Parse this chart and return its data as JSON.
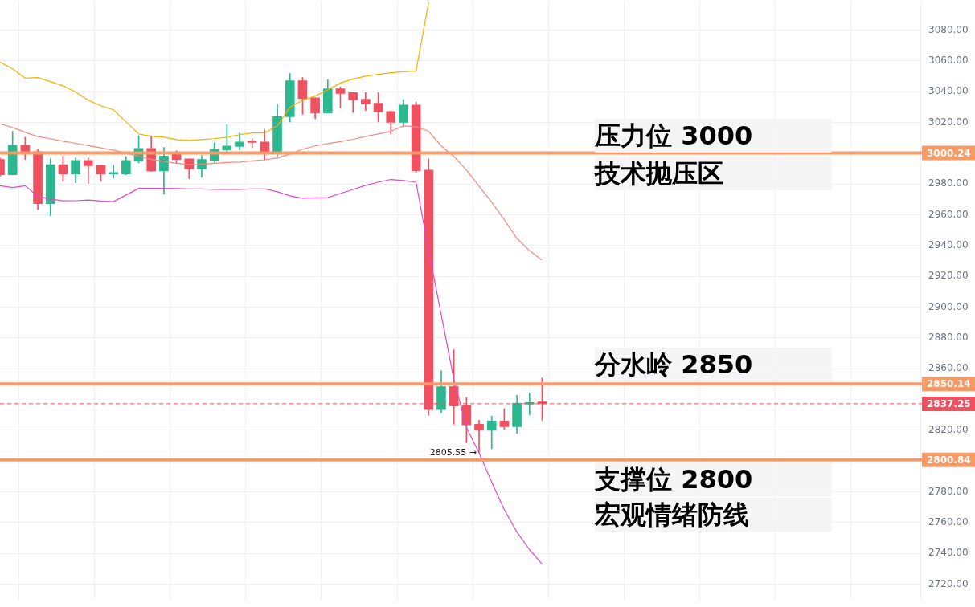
{
  "chart_data": {
    "type": "candlestick",
    "categories": [
      null,
      null,
      null,
      null,
      null,
      null,
      null,
      null,
      null,
      null,
      null,
      null,
      null,
      null,
      null,
      null,
      null,
      null,
      null,
      null,
      null,
      null,
      null,
      null,
      null,
      null,
      null,
      null,
      null,
      null,
      null,
      null,
      null,
      null,
      null,
      null,
      null,
      null,
      null,
      null,
      null,
      null,
      null,
      null,
      null,
      null,
      null,
      null,
      null,
      null,
      null,
      null,
      null,
      null,
      null,
      null,
      null,
      null,
      null,
      null,
      null,
      null,
      null,
      null,
      null,
      null,
      null,
      null,
      null,
      null,
      null,
      null,
      null,
      null
    ],
    "ohlc": [
      [
        2996,
        2997,
        2985,
        2986.1
      ],
      [
        2986.1,
        3014.3,
        2986,
        3005.3
      ],
      [
        3005.3,
        3010.5,
        2996,
        3000.7
      ],
      [
        3001.1,
        3002.7,
        2963.5,
        2967.3
      ],
      [
        2967.3,
        2996.4,
        2959.5,
        2992.6
      ],
      [
        2992.6,
        2998.1,
        2981.8,
        2986.6
      ],
      [
        2986.6,
        2997.1,
        2980.9,
        2995.4
      ],
      [
        2995.4,
        2997.1,
        2980.4,
        2991.9
      ],
      [
        2992.2,
        2992.2,
        2981.8,
        2986.6
      ],
      [
        2986.6,
        2992.2,
        2983.9,
        2987.5
      ],
      [
        2986.6,
        2997.8,
        2986.1,
        2995.4
      ],
      [
        2995,
        3011.4,
        2993.9,
        3003.2
      ],
      [
        3003.2,
        3011.4,
        2988.2,
        2988.6
      ],
      [
        2988.6,
        3003.9,
        2973.4,
        2998.3
      ],
      [
        2999.5,
        3001.6,
        2993.4,
        2996
      ],
      [
        2996.4,
        2996.4,
        2983.5,
        2989.8
      ],
      [
        2989.8,
        2998.6,
        2984.5,
        2996
      ],
      [
        2995.5,
        3006.9,
        2994.3,
        3002.7
      ],
      [
        3002.3,
        3018.7,
        3000.4,
        3004.8
      ],
      [
        3004.4,
        3013.1,
        3002.3,
        3007.4
      ],
      [
        3007.9,
        3009.5,
        3003.7,
        3007
      ],
      [
        3007.4,
        3015.2,
        2996,
        3000.7
      ],
      [
        3000.7,
        3031.8,
        2997.8,
        3023.9
      ],
      [
        3023.7,
        3051.8,
        3020.4,
        3047.1
      ],
      [
        3047.1,
        3049.2,
        3025.3,
        3035.6
      ],
      [
        3036.1,
        3036.1,
        3022.5,
        3026.3
      ],
      [
        3026.3,
        3047.8,
        3026.3,
        3041.9
      ],
      [
        3041.9,
        3043.1,
        3029.5,
        3038.9
      ],
      [
        3039.4,
        3039.4,
        3026.5,
        3034.7
      ],
      [
        3035.1,
        3039.4,
        3027.7,
        3032.1
      ],
      [
        3032.5,
        3039.4,
        3020.4,
        3026.9
      ],
      [
        3027.2,
        3027.2,
        3012.4,
        3020.1
      ],
      [
        3020.1,
        3034.9,
        3017.3,
        3031.4
      ],
      [
        3031.4,
        3033.3,
        2987.7,
        2988.7
      ],
      [
        2989.1,
        2996.4,
        2829.7,
        2833.5
      ],
      [
        2833.5,
        2858.8,
        2831.4,
        2848.4
      ],
      [
        2848.4,
        2872.4,
        2824,
        2835.8
      ],
      [
        2836.4,
        2841.4,
        2811.9,
        2823.6
      ],
      [
        2824,
        2826.6,
        2805.55,
        2820
      ],
      [
        2820,
        2829.2,
        2808,
        2826.1
      ],
      [
        2826.1,
        2834.1,
        2820.7,
        2822.4
      ],
      [
        2822.4,
        2842.8,
        2818.1,
        2837.6
      ],
      [
        2837,
        2844,
        2830.1,
        2838.1
      ],
      [
        2838.5,
        2854.1,
        2826.6,
        2837.25
      ],
      null,
      null,
      null,
      null,
      null,
      null,
      null,
      null,
      null,
      null,
      null,
      null,
      null,
      null,
      null,
      null,
      null,
      null,
      null,
      null,
      null,
      null,
      null,
      null,
      null,
      null,
      null,
      null,
      null,
      null
    ],
    "colors": [
      "#ef5160",
      "#2bb78f",
      "#ef5160",
      "#ef5160",
      "#2bb78f",
      "#ef5160",
      "#2bb78f",
      "#ef5160",
      "#ef5160",
      "#2bb78f",
      "#2bb78f",
      "#2bb78f",
      "#ef5160",
      "#2bb78f",
      "#ef5160",
      "#ef5160",
      "#2bb78f",
      "#2bb78f",
      "#2bb78f",
      "#2bb78f",
      "#ef5160",
      "#ef5160",
      "#2bb78f",
      "#2bb78f",
      "#ef5160",
      "#ef5160",
      "#2bb78f",
      "#ef5160",
      "#ef5160",
      "#ef5160",
      "#ef5160",
      "#ef5160",
      "#2bb78f",
      "#ef5160",
      "#ef5160",
      "#2bb78f",
      "#ef5160",
      "#ef5160",
      "#ef5160",
      "#2bb78f",
      "#ef5160",
      "#2bb78f",
      "#2bb78f",
      "#ef5160",
      null,
      null,
      null,
      null,
      null,
      null,
      null,
      null,
      null,
      null,
      null,
      null,
      null,
      null,
      null,
      null,
      null,
      null,
      null,
      null,
      null,
      null,
      null,
      null,
      null,
      null,
      null,
      null,
      null,
      null
    ],
    "series": [
      {
        "type": "line",
        "color": "#f5b000",
        "values": [
          3059.3,
          3054.9,
          3048.8,
          3049.2,
          3046.6,
          3043.9,
          3039.8,
          3034.5,
          3030.9,
          3028.3,
          3020.4,
          3012.6,
          3011.0,
          3010.5,
          3008.9,
          3008.4,
          3008.9,
          3009.5,
          3010.5,
          3012.1,
          3013.2,
          3013.2,
          3017.8,
          3030.0,
          3034.5,
          3037.2,
          3041.3,
          3045.7,
          3048.3,
          3050.1,
          3051.3,
          3052.3,
          3053.0,
          3053.5,
          3098,
          null,
          null,
          null,
          null,
          null,
          null,
          null,
          null,
          null,
          null,
          null,
          null,
          null,
          null,
          null,
          null,
          null,
          null,
          null,
          null,
          null,
          null,
          null,
          null,
          null,
          null,
          null,
          null,
          null,
          null,
          null,
          null,
          null,
          null,
          null,
          null,
          null,
          null,
          null
        ]
      },
      {
        "type": "line",
        "color": "#f28b82",
        "values": [
          3019.1,
          3016.8,
          3013.6,
          3010.9,
          3009.5,
          3007.9,
          3006.5,
          3005.0,
          3003.6,
          3002.1,
          3000.1,
          2998.0,
          2996.0,
          2994.8,
          2993.5,
          2992.6,
          2992.9,
          2993.5,
          2994.0,
          2994.3,
          2995.1,
          2995.8,
          2996.9,
          2999.5,
          3002.7,
          3004.8,
          3006.3,
          3007.6,
          3009.1,
          3011.0,
          3012.6,
          3014.3,
          3017.8,
          3017.3,
          3014.3,
          3004.8,
          2998.0,
          2989.1,
          2978.6,
          2968.2,
          2956.7,
          2944.7,
          2936.8,
          2930.6,
          null,
          null,
          null,
          null,
          null,
          null,
          null,
          null,
          null,
          null,
          null,
          null,
          null,
          null,
          null,
          null,
          null,
          null,
          null,
          null,
          null,
          null,
          null,
          null,
          null,
          null,
          null,
          null,
          null,
          null
        ]
      },
      {
        "type": "line",
        "color": "#e349c4",
        "values": [
          2978.9,
          2977.7,
          2978.9,
          2972.0,
          2970.3,
          2969.1,
          2969.2,
          2969.6,
          2969.0,
          2968.6,
          2972.9,
          2977.2,
          2977.2,
          2977.2,
          2977.1,
          2976.9,
          2976.8,
          2976.6,
          2976.5,
          2976.6,
          2976.8,
          2976.9,
          2975.0,
          2972.4,
          2970.8,
          2971.1,
          2971.2,
          2973.9,
          2976.5,
          2979.2,
          2981.2,
          2983.0,
          2982.3,
          2981.2,
          2936.8,
          2895.0,
          2853.2,
          2821.9,
          2805.2,
          2786.3,
          2768.5,
          2753.9,
          2742.5,
          2733.0,
          null,
          null,
          null,
          null,
          null,
          null,
          null,
          null,
          null,
          null,
          null,
          null,
          null,
          null,
          null,
          null,
          null,
          null,
          null,
          null,
          null,
          null,
          null,
          null,
          null,
          null,
          null,
          null,
          null,
          null
        ]
      }
    ],
    "ylim": [
      2710,
      3099
    ],
    "yticks": [
      {
        "value": 2720,
        "label": "2720.00"
      },
      {
        "value": 2740,
        "label": "2740.00"
      },
      {
        "value": 2760,
        "label": "2760.00"
      },
      {
        "value": 2780,
        "label": "2780.00"
      },
      {
        "value": 2820,
        "label": "2820.00"
      },
      {
        "value": 2860,
        "label": "2860.00"
      },
      {
        "value": 2880,
        "label": "2880.00"
      },
      {
        "value": 2900,
        "label": "2900.00"
      },
      {
        "value": 2920,
        "label": "2920.00"
      },
      {
        "value": 2940,
        "label": "2940.00"
      },
      {
        "value": 2960,
        "label": "2960.00"
      },
      {
        "value": 2980,
        "label": "2980.00"
      },
      {
        "value": 3020,
        "label": "3020.00"
      },
      {
        "value": 3040,
        "label": "3040.00"
      },
      {
        "value": 3060,
        "label": "3060.00"
      },
      {
        "value": 3080,
        "label": "3080.00"
      }
    ],
    "ref_lines": [
      {
        "axis": "y",
        "value": 3000.24,
        "label": "3000.24",
        "color": "#f79a66"
      },
      {
        "axis": "y",
        "value": 2850.14,
        "label": "2850.14",
        "color": "#f79a66"
      },
      {
        "axis": "y",
        "value": 2800.84,
        "label": "2800.84",
        "color": "#f79a66"
      },
      {
        "axis": "y",
        "value": 2837.25,
        "label": "2837.25",
        "color": "#ef5160",
        "line_style": "dashed"
      }
    ],
    "annotations": [
      "压力位 3000",
      "技术抛压区",
      "分水岭 2850",
      "支撑位 2800",
      "宏观情绪防线",
      "2805.55 →"
    ],
    "grid": true,
    "legend": false,
    "tick_labels": "y"
  }
}
